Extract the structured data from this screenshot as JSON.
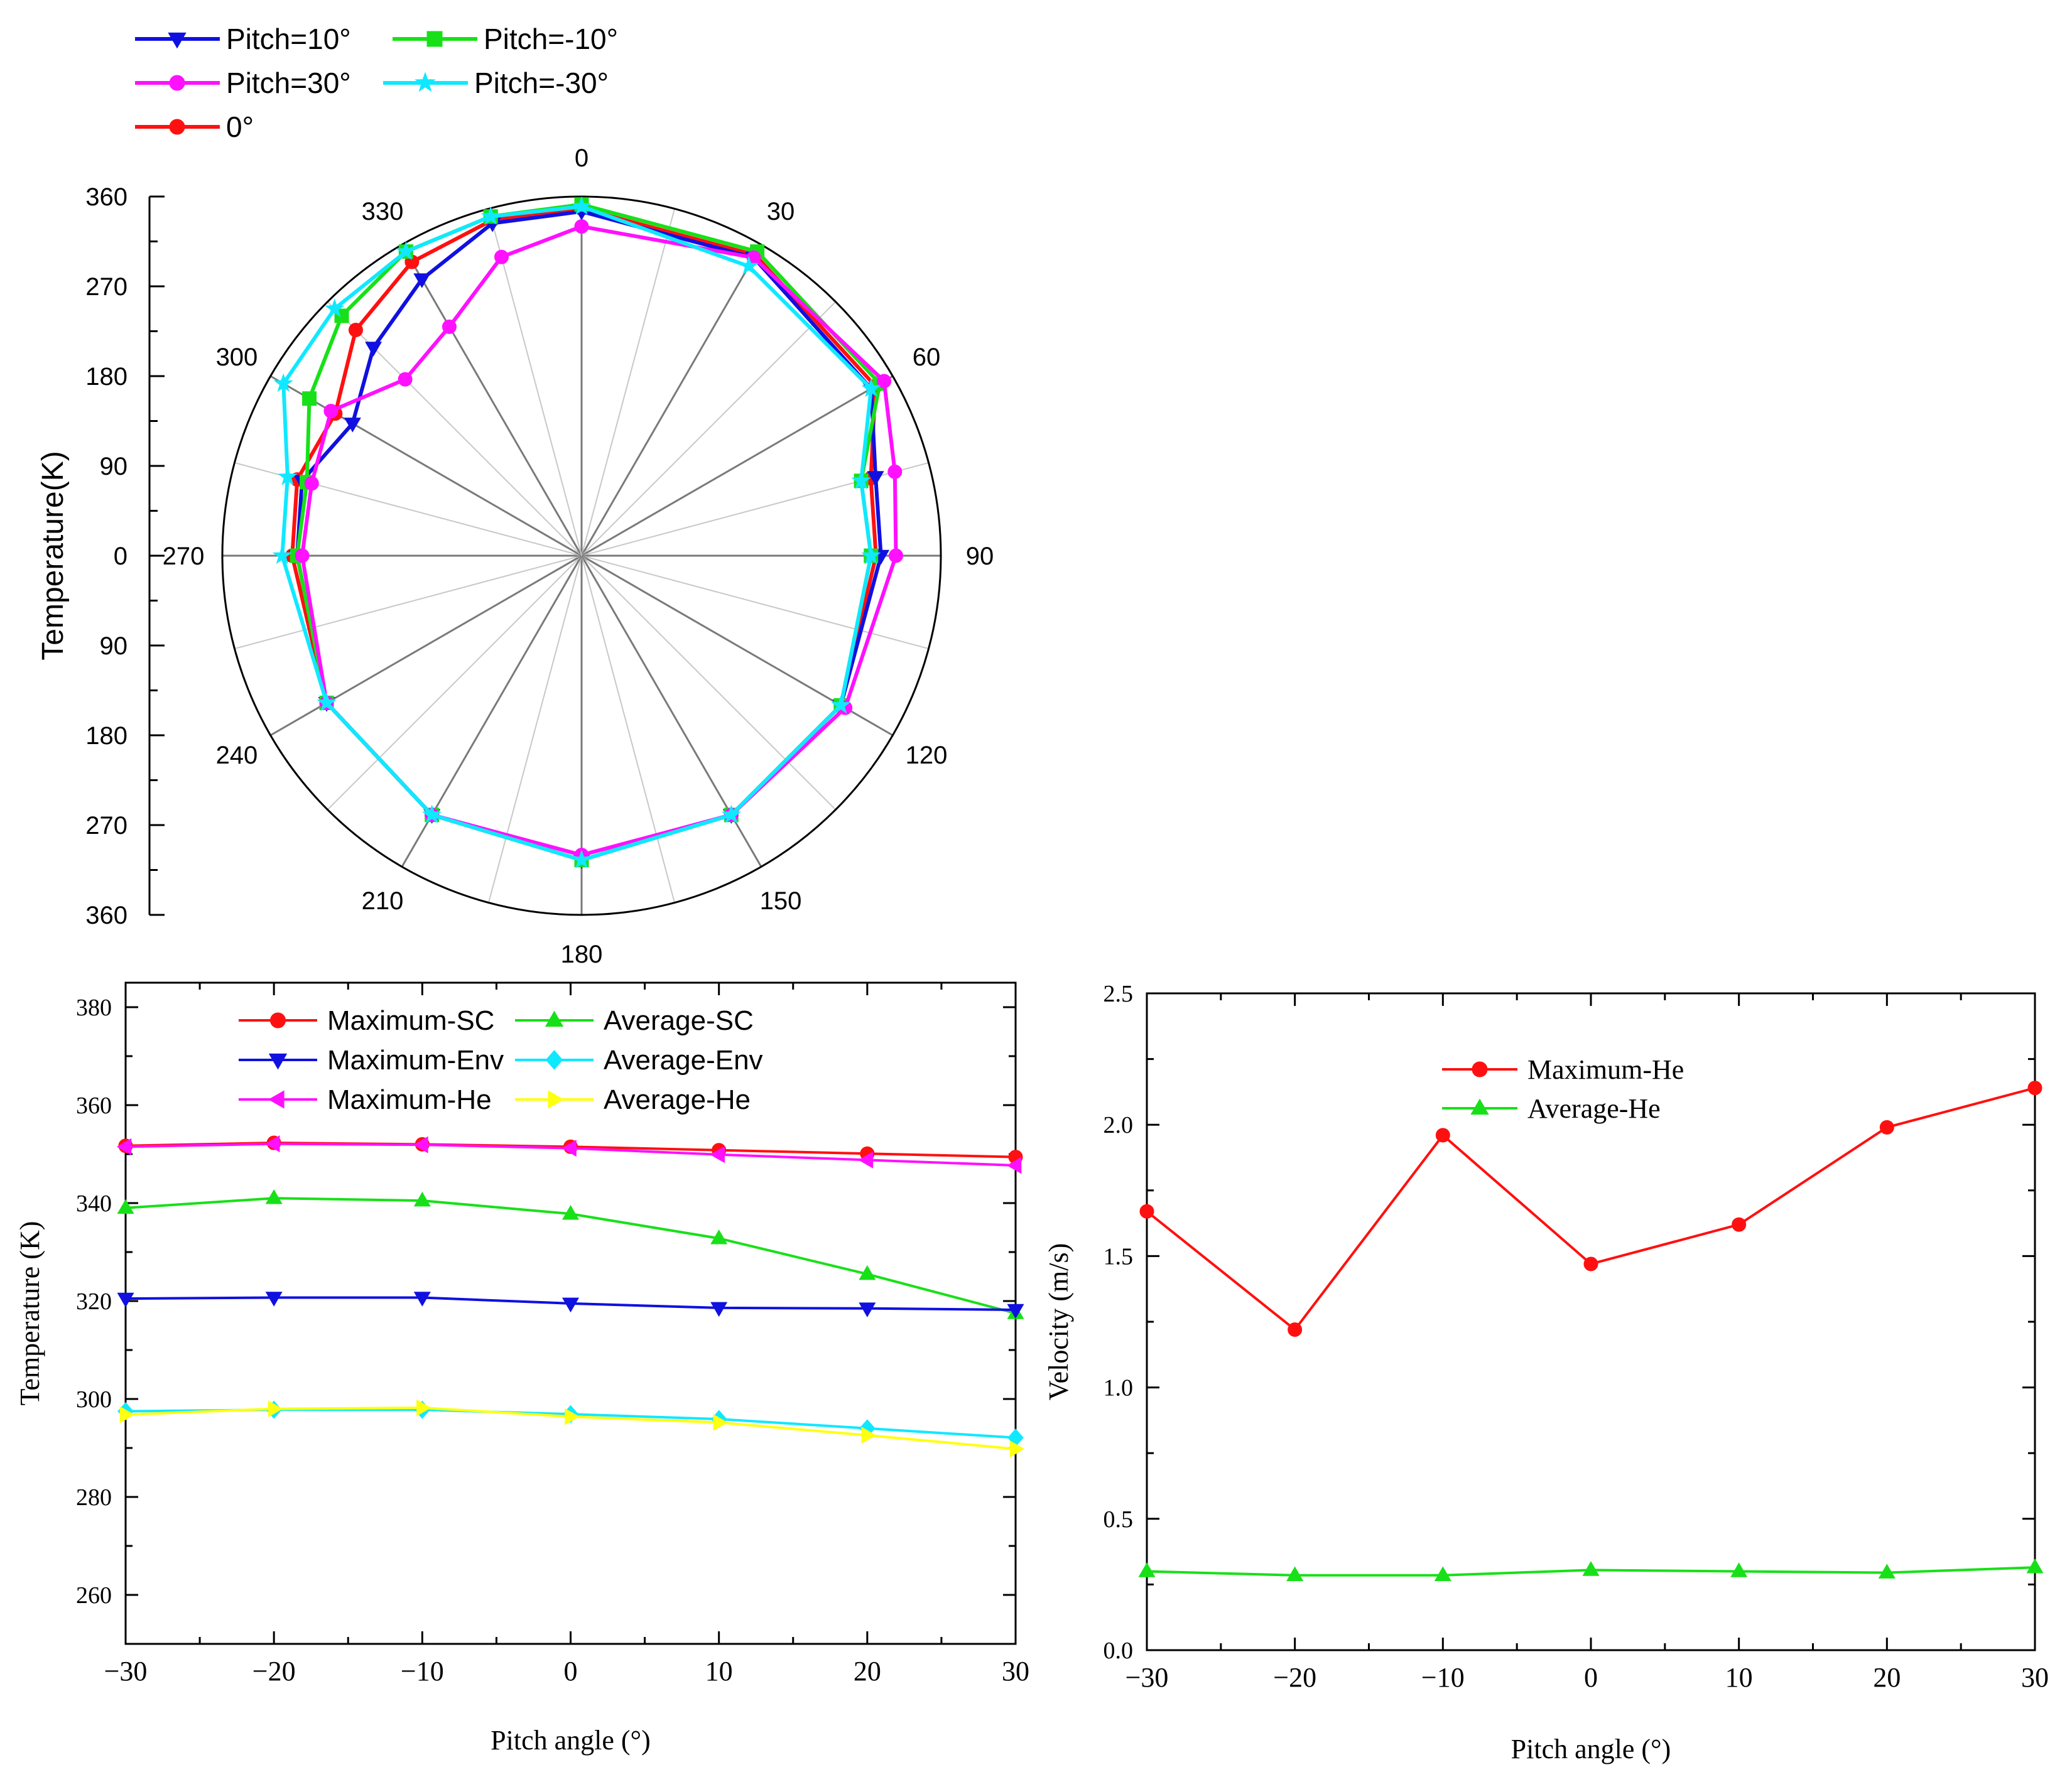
{
  "chart_data": [
    {
      "type": "polar",
      "title": "",
      "ylabel": "Temperature(K)",
      "radial_ticks": [
        "360",
        "270",
        "180",
        "90",
        "0",
        "90",
        "180",
        "270",
        "360"
      ],
      "angle_ticks": [
        "0",
        "30",
        "60",
        "90",
        "120",
        "150",
        "180",
        "210",
        "240",
        "270",
        "300",
        "330"
      ],
      "angle_step_deg": 15,
      "radius_range": [
        0,
        360
      ],
      "legend": [
        "Pitch=10°",
        "Pitch=-10°",
        "Pitch=30°",
        "Pitch=-30°",
        "0°"
      ],
      "series": [
        {
          "name": "Pitch=10°",
          "color": "#1010e0",
          "marker": "triangle-down",
          "angles": [
            0,
            30,
            60,
            75,
            90,
            120,
            150,
            180,
            210,
            240,
            270,
            285,
            300,
            315,
            330,
            345,
            360
          ],
          "values": [
            345,
            345,
            335,
            305,
            300,
            300,
            300,
            305,
            300,
            295,
            285,
            290,
            265,
            295,
            320,
            345,
            345
          ]
        },
        {
          "name": "Pitch=-10°",
          "color": "#18e018",
          "marker": "square",
          "angles": [
            0,
            30,
            60,
            75,
            90,
            120,
            150,
            180,
            210,
            240,
            270,
            285,
            300,
            315,
            330,
            345,
            360
          ],
          "values": [
            352,
            352,
            345,
            290,
            290,
            300,
            300,
            305,
            300,
            295,
            285,
            285,
            315,
            340,
            352,
            352,
            352
          ]
        },
        {
          "name": "Pitch=30°",
          "color": "#ff10ff",
          "marker": "circle",
          "angles": [
            0,
            30,
            60,
            75,
            90,
            120,
            150,
            180,
            210,
            240,
            270,
            285,
            300,
            315,
            330,
            345,
            360
          ],
          "values": [
            330,
            345,
            350,
            325,
            315,
            305,
            300,
            300,
            300,
            295,
            280,
            280,
            290,
            250,
            265,
            310,
            330
          ]
        },
        {
          "name": "Pitch=-30°",
          "color": "#10e8ff",
          "marker": "star",
          "angles": [
            0,
            30,
            60,
            75,
            90,
            120,
            150,
            180,
            210,
            240,
            270,
            285,
            300,
            315,
            330,
            345,
            360
          ],
          "values": [
            350,
            335,
            335,
            290,
            290,
            300,
            300,
            305,
            300,
            295,
            300,
            305,
            345,
            350,
            352,
            352,
            350
          ]
        },
        {
          "name": "0°",
          "color": "#ff1010",
          "marker": "circle",
          "angles": [
            0,
            30,
            60,
            75,
            90,
            120,
            150,
            180,
            210,
            240,
            270,
            285,
            300,
            315,
            330,
            345,
            360
          ],
          "values": [
            348,
            348,
            340,
            300,
            295,
            300,
            300,
            305,
            300,
            295,
            290,
            295,
            285,
            320,
            340,
            348,
            348
          ]
        }
      ]
    },
    {
      "type": "line",
      "title": "",
      "xlabel": "Pitch angle (°)",
      "ylabel": "Temperature (K)",
      "xlim": [
        -30,
        30
      ],
      "ylim": [
        250,
        385
      ],
      "xticks": [
        -30,
        -20,
        -10,
        0,
        10,
        20,
        30
      ],
      "xtick_labels": [
        "−30",
        "−20",
        "−10",
        "0",
        "10",
        "20",
        "30"
      ],
      "yticks": [
        260,
        280,
        300,
        320,
        340,
        360,
        380
      ],
      "legend": [
        "Maximum-SC",
        "Average-SC",
        "Maximum-Env",
        "Average-Env",
        "Maximum-He",
        "Average-He"
      ],
      "x": [
        -30,
        -20,
        -10,
        0,
        10,
        20,
        30
      ],
      "series": [
        {
          "name": "Maximum-SC",
          "color": "#ff1010",
          "marker": "circle",
          "values": [
            351.7,
            352.3,
            352.0,
            351.5,
            350.8,
            350.1,
            349.4
          ]
        },
        {
          "name": "Average-SC",
          "color": "#18e018",
          "marker": "triangle-up",
          "values": [
            339.0,
            341.0,
            340.5,
            337.8,
            332.8,
            325.5,
            317.5
          ]
        },
        {
          "name": "Maximum-Env",
          "color": "#1010e0",
          "marker": "triangle-down",
          "values": [
            320.5,
            320.7,
            320.7,
            319.5,
            318.6,
            318.5,
            318.2
          ]
        },
        {
          "name": "Average-Env",
          "color": "#10e8ff",
          "marker": "diamond",
          "values": [
            297.5,
            297.8,
            297.8,
            296.9,
            295.9,
            294.0,
            292.1
          ]
        },
        {
          "name": "Maximum-He",
          "color": "#ff10ff",
          "marker": "triangle-left",
          "values": [
            351.5,
            352.1,
            351.9,
            351.2,
            349.9,
            348.8,
            347.7
          ]
        },
        {
          "name": "Average-He",
          "color": "#ffff10",
          "marker": "triangle-right",
          "values": [
            296.8,
            298.0,
            298.2,
            296.4,
            295.2,
            292.6,
            289.8
          ]
        }
      ]
    },
    {
      "type": "line",
      "title": "",
      "xlabel": "Pitch angle (°)",
      "ylabel": "Velocity (m/s)",
      "xlim": [
        -30,
        30
      ],
      "ylim": [
        0.0,
        2.5
      ],
      "xticks": [
        -30,
        -20,
        -10,
        0,
        10,
        20,
        30
      ],
      "xtick_labels": [
        "−30",
        "−20",
        "−10",
        "0",
        "10",
        "20",
        "30"
      ],
      "yticks": [
        0.0,
        0.5,
        1.0,
        1.5,
        2.0,
        2.5
      ],
      "ytick_labels": [
        "0.0",
        "0.5",
        "1.0",
        "1.5",
        "2.0",
        "2.5"
      ],
      "legend": [
        "Maximum-He",
        "Average-He"
      ],
      "x": [
        -30,
        -20,
        -10,
        0,
        10,
        20,
        30
      ],
      "series": [
        {
          "name": "Maximum-He",
          "color": "#ff1010",
          "marker": "circle",
          "values": [
            1.67,
            1.22,
            1.96,
            1.47,
            1.62,
            1.99,
            2.14
          ]
        },
        {
          "name": "Average-He",
          "color": "#18e018",
          "marker": "triangle-up",
          "values": [
            0.3,
            0.285,
            0.285,
            0.305,
            0.3,
            0.295,
            0.315
          ]
        }
      ]
    }
  ]
}
